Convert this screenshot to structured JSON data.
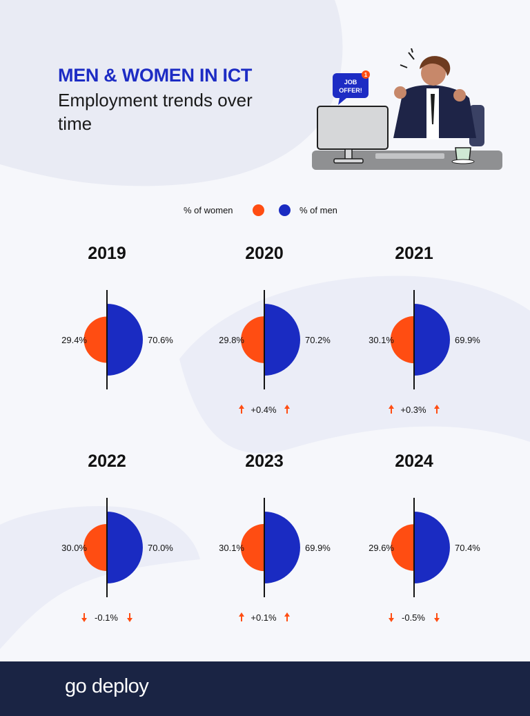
{
  "header": {
    "title": "MEN & WOMEN IN ICT",
    "subtitle": "Employment trends over time"
  },
  "illustration": {
    "badge_text": "JOB OFFER!",
    "badge_count": "1"
  },
  "legend": {
    "women_label": "% of women",
    "men_label": "% of men"
  },
  "colors": {
    "women": "#ff4d12",
    "men": "#1a2bc2",
    "accent": "#1d2cc4",
    "footer": "#1a2444",
    "change_arrow": "#ff4d12"
  },
  "chart_data": {
    "type": "pie",
    "series": [
      {
        "name": "% of women"
      },
      {
        "name": "% of men"
      }
    ],
    "panels": [
      {
        "year": "2019",
        "women": 29.4,
        "men": 70.6,
        "women_label": "29.4%",
        "men_label": "70.6%",
        "change": "",
        "direction": ""
      },
      {
        "year": "2020",
        "women": 29.8,
        "men": 70.2,
        "women_label": "29.8%",
        "men_label": "70.2%",
        "change": "+0.4%",
        "direction": "up"
      },
      {
        "year": "2021",
        "women": 30.1,
        "men": 69.9,
        "women_label": "30.1%",
        "men_label": "69.9%",
        "change": "+0.3%",
        "direction": "up"
      },
      {
        "year": "2022",
        "women": 30.0,
        "men": 70.0,
        "women_label": "30.0%",
        "men_label": "70.0%",
        "change": "-0.1%",
        "direction": "down"
      },
      {
        "year": "2023",
        "women": 30.1,
        "men": 69.9,
        "women_label": "30.1%",
        "men_label": "69.9%",
        "change": "+0.1%",
        "direction": "up"
      },
      {
        "year": "2024",
        "women": 29.6,
        "men": 70.4,
        "women_label": "29.6%",
        "men_label": "70.4%",
        "change": "-0.5%",
        "direction": "down"
      }
    ]
  },
  "footer": {
    "brand": "go deploy"
  }
}
